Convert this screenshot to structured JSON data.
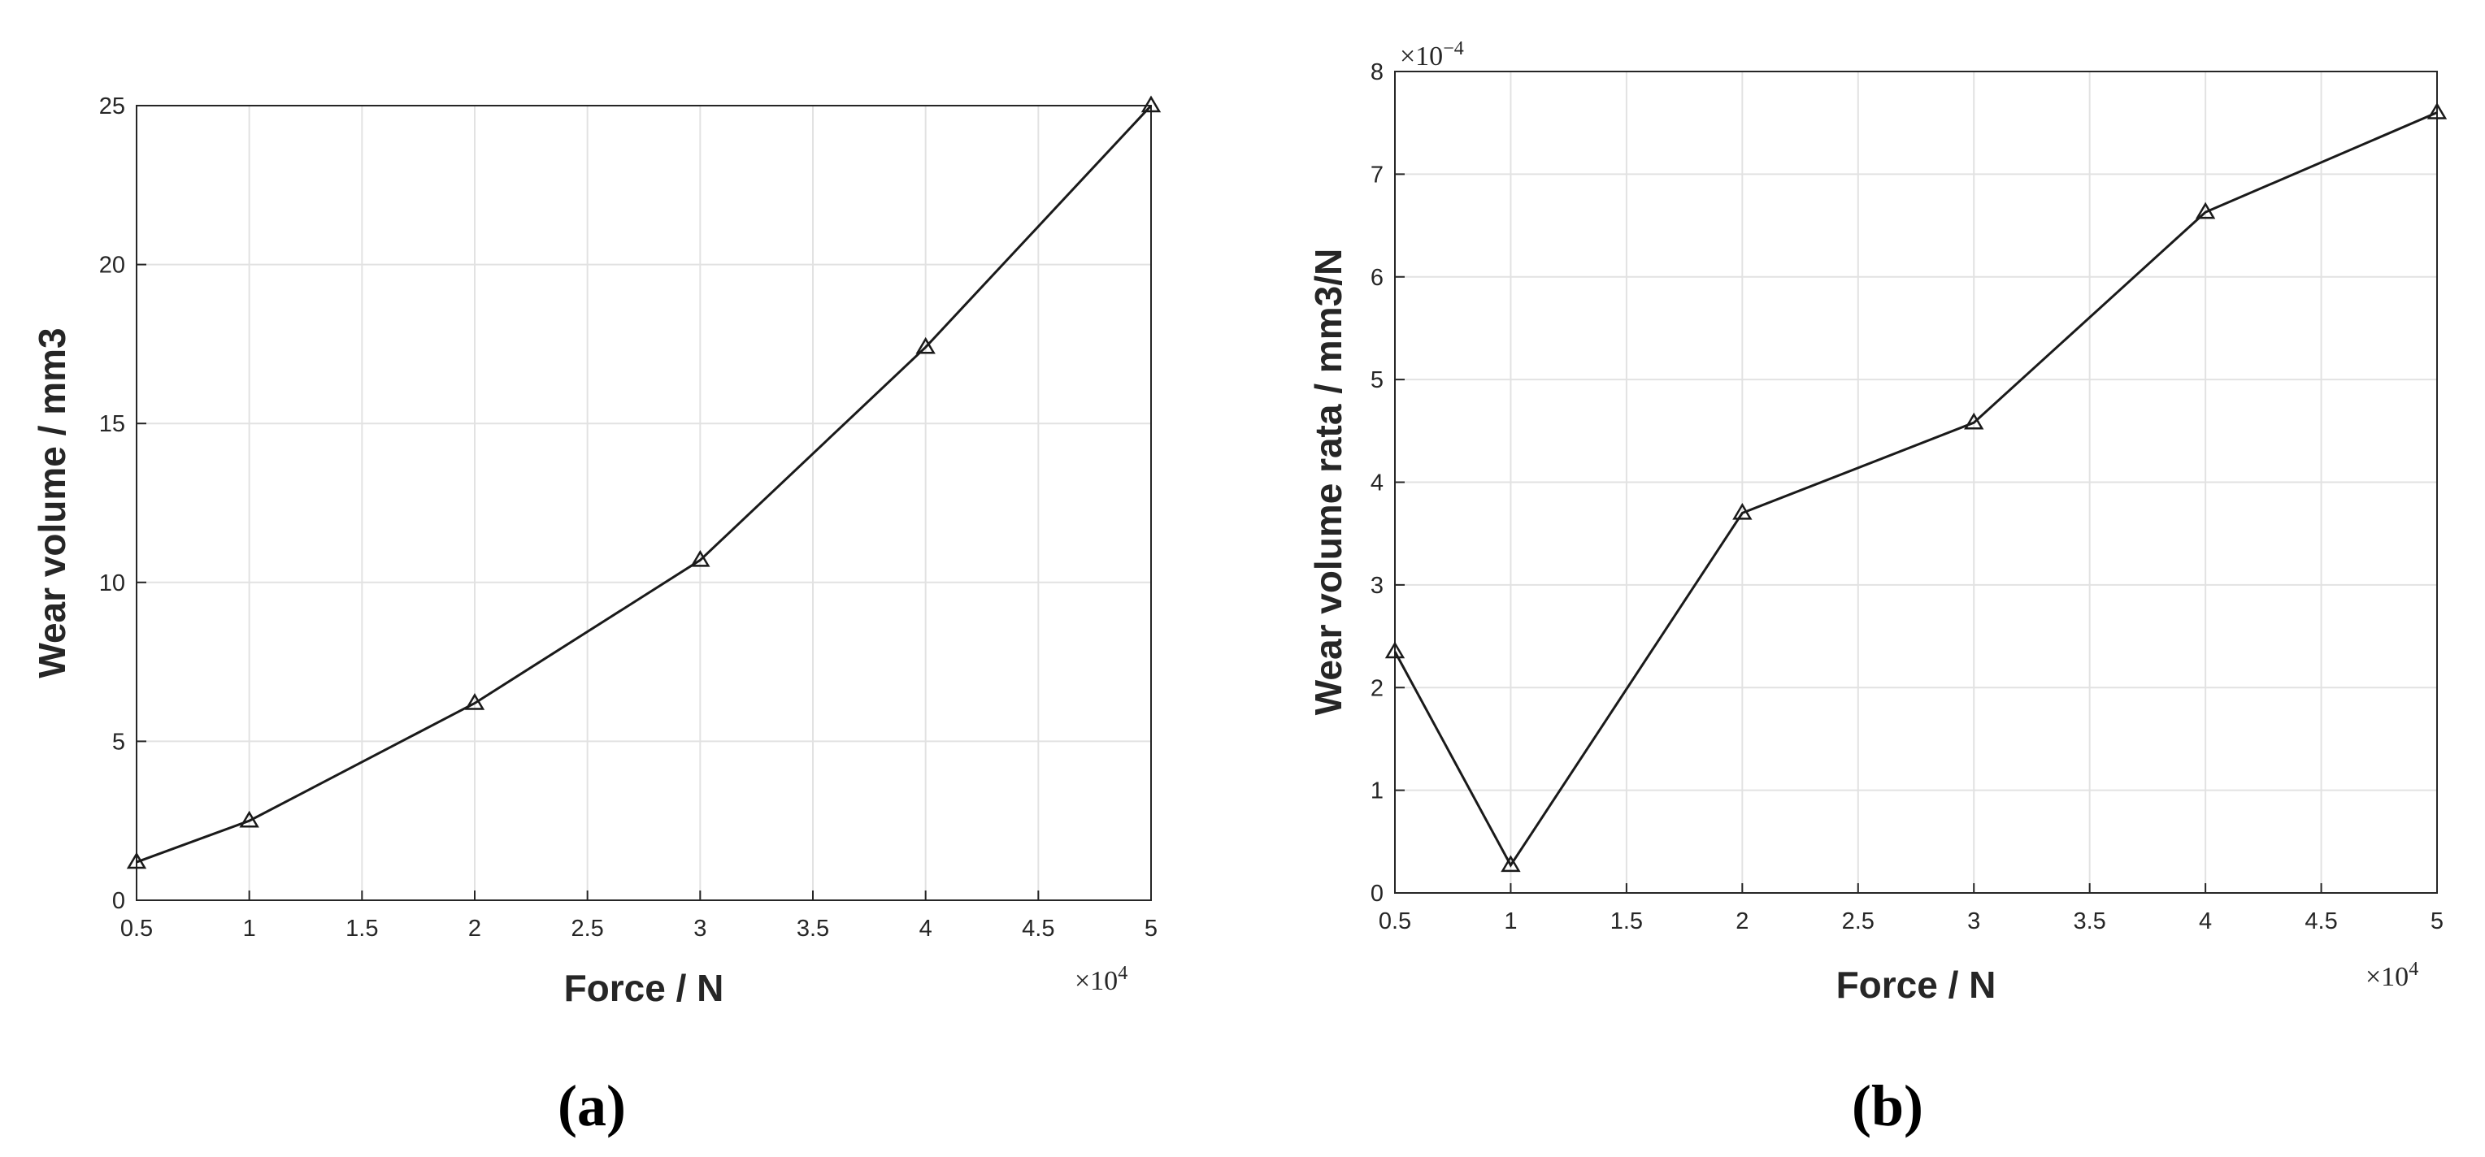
{
  "chart_data": [
    {
      "panel": "a",
      "type": "line",
      "caption": "(a)",
      "xlabel": "Force / N",
      "ylabel": "Wear volume / mm3",
      "x_multiplier_base": "×10",
      "x_multiplier_exp": "4",
      "x": [
        0.5,
        1,
        2,
        3,
        4,
        5
      ],
      "values": [
        1.2,
        2.5,
        6.2,
        10.7,
        17.4,
        25.0
      ],
      "xlim": [
        0.5,
        5
      ],
      "ylim": [
        0,
        25
      ],
      "xticks": [
        "0.5",
        "1",
        "1.5",
        "2",
        "2.5",
        "3",
        "3.5",
        "4",
        "4.5",
        "5"
      ],
      "yticks": [
        "0",
        "5",
        "10",
        "15",
        "20",
        "25"
      ],
      "grid": true,
      "marker": "triangle"
    },
    {
      "panel": "b",
      "type": "line",
      "caption": "(b)",
      "xlabel": "Force / N",
      "ylabel": "Wear volume rata / mm3/N",
      "x_multiplier_base": "×10",
      "x_multiplier_exp": "4",
      "y_multiplier_base": "×10",
      "y_multiplier_exp": "−4",
      "x": [
        0.5,
        1,
        2,
        3,
        4,
        5
      ],
      "values": [
        2.35,
        0.27,
        3.7,
        4.58,
        6.63,
        7.6
      ],
      "xlim": [
        0.5,
        5
      ],
      "ylim": [
        0,
        8
      ],
      "xticks": [
        "0.5",
        "1",
        "1.5",
        "2",
        "2.5",
        "3",
        "3.5",
        "4",
        "4.5",
        "5"
      ],
      "yticks": [
        "0",
        "1",
        "2",
        "3",
        "4",
        "5",
        "6",
        "7",
        "8"
      ],
      "grid": true,
      "marker": "triangle"
    }
  ]
}
